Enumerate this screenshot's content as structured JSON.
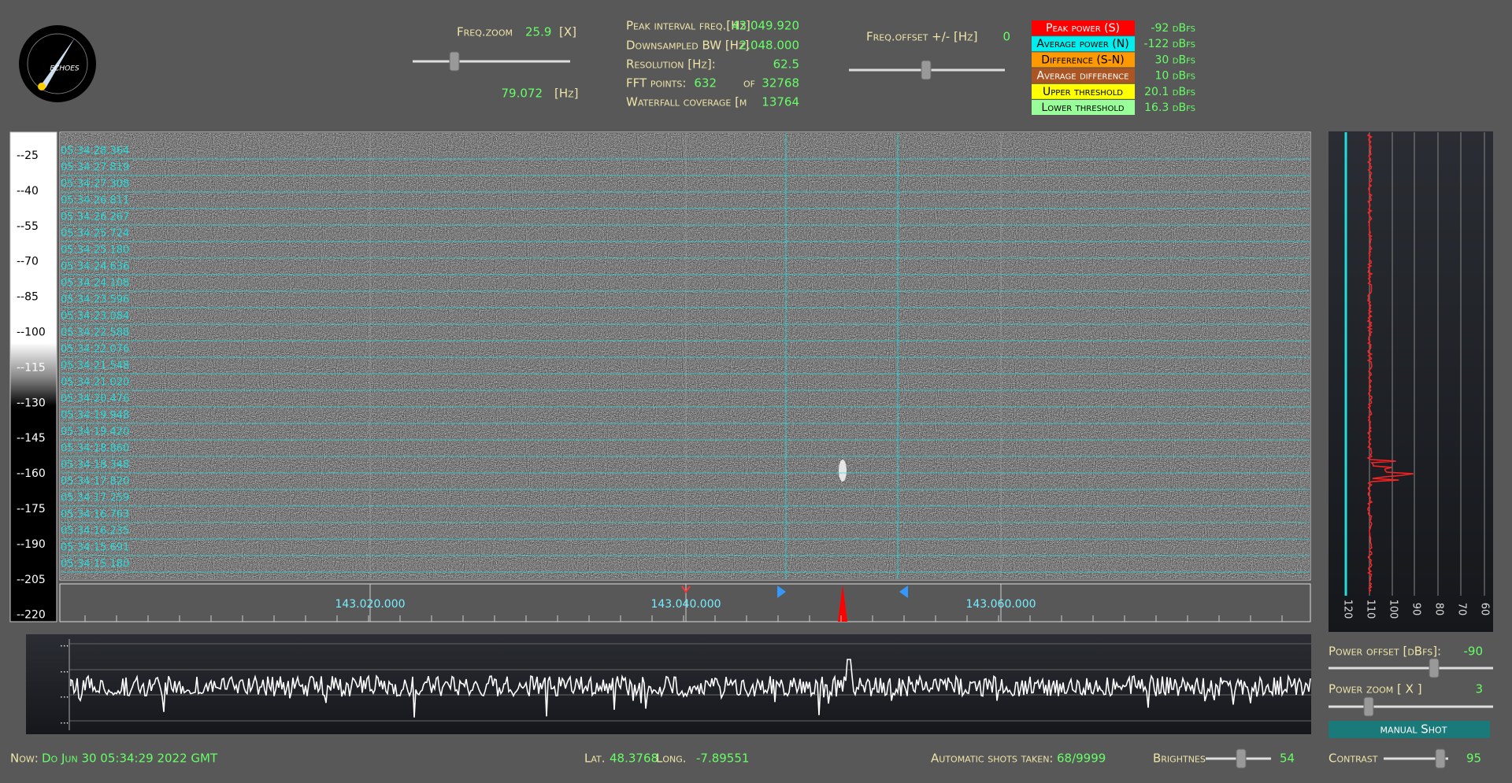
{
  "logo": "ECHOES",
  "freq_zoom": {
    "label": "Freq.zoom",
    "value": "25.9",
    "unit": "[X]",
    "hz_value": "79.072",
    "hz_unit": "[Hz]"
  },
  "info": {
    "rows": [
      {
        "label": "Peak interval freq.[Hz]",
        "value": "43.049.920"
      },
      {
        "label": "Downsampled BW  [Hz]",
        "value": "2.048.000"
      },
      {
        "label": "Resolution [Hz]:",
        "value": "62.5"
      },
      {
        "label": "Waterfall coverage [m",
        "value": "13764"
      }
    ],
    "fft": {
      "label": "FFT points:",
      "value": "632",
      "of": "of",
      "total": "32768"
    }
  },
  "freq_offset": {
    "label": "Freq.offset +/- [Hz]",
    "value": "0"
  },
  "legend": [
    {
      "label": "Peak power (S)",
      "value": "-92 dBfs"
    },
    {
      "label": "Average power (N)",
      "value": "-122 dBfs"
    },
    {
      "label": "Difference (S-N)",
      "value": "30 dBfs"
    },
    {
      "label": "Average difference",
      "value": "10 dBfs"
    },
    {
      "label": "Upper threshold",
      "value": "20.1 dBfs"
    },
    {
      "label": "Lower threshold",
      "value": "16.3 dBfs"
    }
  ],
  "power_scale": [
    "--25",
    "--40",
    "--55",
    "--70",
    "--85",
    "--100",
    "--115",
    "--130",
    "--145",
    "--160",
    "--175",
    "--190",
    "--205",
    "--220"
  ],
  "timestamps": [
    "05:34:28.364",
    "05:34:27.819",
    "05:34:27.308",
    "05:34:26.811",
    "05:34:26.267",
    "05:34:25.724",
    "05:34:25.180",
    "05:34:24.636",
    "05:34:24.108",
    "05:34:23.596",
    "05:34:23.084",
    "05:34:22.588",
    "05:34:22.076",
    "05:34:21.548",
    "05:34:21.020",
    "05:34:20.476",
    "05:34:19.948",
    "05:34:19.420",
    "05:34:18.860",
    "05:34:18.348",
    "05:34:17.820",
    "05:34:17.259",
    "05:34:16.763",
    "05:34:16.235",
    "05:34:15.691",
    "05:34:15.180"
  ],
  "freq_axis": [
    "143.020.000",
    "143.040.000",
    "143.060.000"
  ],
  "right_axis": [
    "120",
    "110",
    "100",
    "90",
    "80",
    "70",
    "60"
  ],
  "spectrum_labels": [
    "...",
    "...",
    "...",
    "..."
  ],
  "power_offset": {
    "label": "Power offset [dBfs]:",
    "value": "-90"
  },
  "power_zoom": {
    "label": "Power zoom  [ X ]",
    "value": "3"
  },
  "manual_shot": "manual Shot",
  "status": {
    "now_label": "Now:",
    "now": "Do Jun 30 05:34:29 2022 GMT",
    "lat_label": "Lat.",
    "lat": "48.3768",
    "long_label": "Long.",
    "long": "-7.89551",
    "shots_label": "Automatic shots taken:",
    "shots": "68/9999",
    "brightness_label": "Brightnes",
    "brightness": "54",
    "contrast_label": "Contrast",
    "contrast": "95"
  }
}
